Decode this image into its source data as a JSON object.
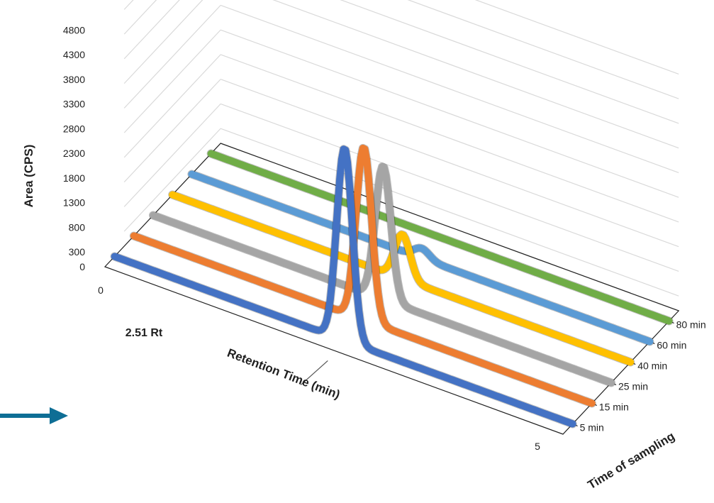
{
  "chart_data": {
    "type": "line",
    "subtype": "3d-line",
    "title": "",
    "ylabel": "Area (CPS)",
    "xlabel": "Retention Time (min)",
    "zlabel": "Time of sampling",
    "ylim": [
      0,
      4800
    ],
    "yticks": [
      "0",
      "300",
      "800",
      "1300",
      "1800",
      "2300",
      "2800",
      "3300",
      "3800",
      "4300",
      "4800"
    ],
    "xlim": [
      0,
      5
    ],
    "xtick_start": "0",
    "xtick_end": "5",
    "grid": true,
    "peak_retention_time": 2.51,
    "annotation": "2.51 Rt",
    "series": [
      {
        "name": "5 min",
        "color": "#4472C4",
        "peak_area": 3900
      },
      {
        "name": "15 min",
        "color": "#ED7D31",
        "peak_area": 3500
      },
      {
        "name": "25 min",
        "color": "#A5A5A5",
        "peak_area": 2700
      },
      {
        "name": "40 min",
        "color": "#FFC000",
        "peak_area": 900
      },
      {
        "name": "60 min",
        "color": "#5B9BD5",
        "peak_area": 200
      },
      {
        "name": "80 min",
        "color": "#70AD47",
        "peak_area": 0
      }
    ]
  },
  "decoration": {
    "arrow_color": "#0E6E95"
  }
}
